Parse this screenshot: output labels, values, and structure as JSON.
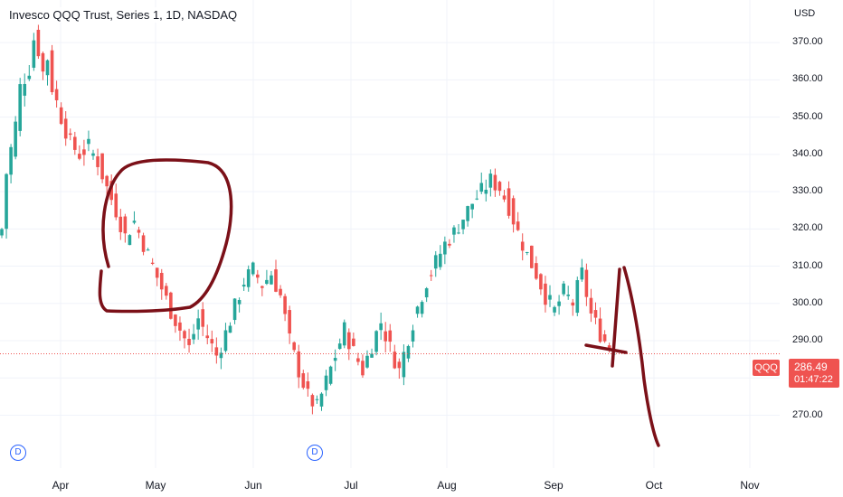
{
  "header": {
    "title": "Invesco QQQ Trust, Series 1, 1D, NASDAQ",
    "currency": "USD"
  },
  "badges": {
    "dividend": "D"
  },
  "last_price": {
    "symbol": "QQQ",
    "value": "286.49",
    "countdown": "01:47:22"
  },
  "colors": {
    "up": "#26a69a",
    "down": "#ef5350",
    "annotation": "#7b1018",
    "grid": "#f0f3fa"
  },
  "chart_data": {
    "type": "candlestick",
    "title": "Invesco QQQ Trust, Series 1, 1D, NASDAQ",
    "ylabel": "USD",
    "ylim": [
      262,
      377
    ],
    "y_ticks": [
      "370.00",
      "360.00",
      "350.00",
      "340.00",
      "330.00",
      "320.00",
      "310.00",
      "300.00",
      "290.00",
      "280.00",
      "270.00"
    ],
    "x_ticks": [
      "Apr",
      "May",
      "Jun",
      "Jul",
      "Aug",
      "Sep",
      "Oct",
      "Nov"
    ],
    "last_close": 286.49,
    "close_path": [
      [
        0,
        320
      ],
      [
        1,
        335
      ],
      [
        3,
        348
      ],
      [
        4,
        358
      ],
      [
        6,
        363
      ],
      [
        7,
        371
      ],
      [
        8,
        368
      ],
      [
        9,
        362
      ],
      [
        10,
        366
      ],
      [
        11,
        358
      ],
      [
        13,
        350
      ],
      [
        15,
        343
      ],
      [
        17,
        340
      ],
      [
        19,
        342
      ],
      [
        21,
        338
      ],
      [
        23,
        331
      ],
      [
        25,
        325
      ],
      [
        27,
        318
      ],
      [
        29,
        322
      ],
      [
        31,
        316
      ],
      [
        33,
        310
      ],
      [
        35,
        304
      ],
      [
        37,
        298
      ],
      [
        39,
        293
      ],
      [
        41,
        288
      ],
      [
        43,
        296
      ],
      [
        45,
        291
      ],
      [
        47,
        286
      ],
      [
        49,
        292
      ],
      [
        51,
        299
      ],
      [
        53,
        306
      ],
      [
        55,
        309
      ],
      [
        57,
        305
      ],
      [
        59,
        308
      ],
      [
        61,
        302
      ],
      [
        63,
        290
      ],
      [
        65,
        282
      ],
      [
        67,
        275
      ],
      [
        69,
        272
      ],
      [
        71,
        279
      ],
      [
        73,
        286
      ],
      [
        75,
        293
      ],
      [
        77,
        287
      ],
      [
        79,
        282
      ],
      [
        81,
        289
      ],
      [
        83,
        295
      ],
      [
        85,
        288
      ],
      [
        87,
        282
      ],
      [
        89,
        291
      ],
      [
        91,
        299
      ],
      [
        93,
        306
      ],
      [
        95,
        311
      ],
      [
        97,
        316
      ],
      [
        99,
        319
      ],
      [
        101,
        323
      ],
      [
        103,
        327
      ],
      [
        105,
        330
      ],
      [
        107,
        333
      ],
      [
        109,
        331
      ],
      [
        111,
        326
      ],
      [
        113,
        319
      ],
      [
        115,
        313
      ],
      [
        117,
        308
      ],
      [
        119,
        302
      ],
      [
        121,
        298
      ],
      [
        123,
        303
      ],
      [
        125,
        300
      ],
      [
        127,
        308
      ],
      [
        129,
        297
      ],
      [
        131,
        292
      ],
      [
        133,
        288
      ],
      [
        134,
        286.49
      ]
    ],
    "x_index_range": [
      0,
      182
    ],
    "annotations": [
      "hand-drawn circle around the May decline",
      "hand-drawn horizontal line near 290.00",
      "hand-drawn arrow pointing down toward 266.00"
    ]
  }
}
